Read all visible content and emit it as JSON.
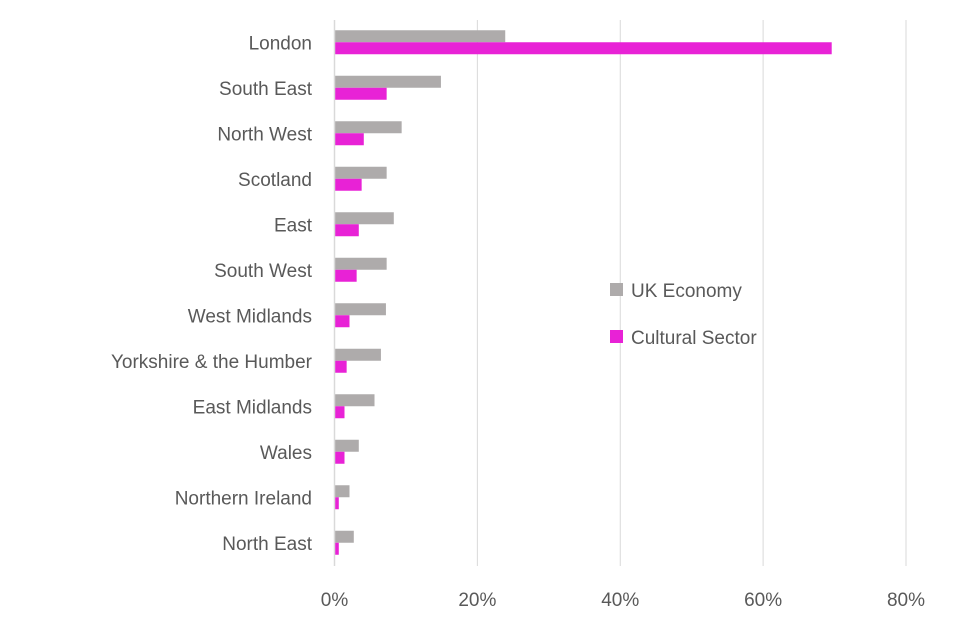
{
  "chart_data": {
    "type": "bar",
    "orientation": "horizontal",
    "categories": [
      "London",
      "South East",
      "North West",
      "Scotland",
      "East",
      "South West",
      "West Midlands",
      "Yorkshire & the Humber",
      "East Midlands",
      "Wales",
      "Northern Ireland",
      "North East"
    ],
    "series": [
      {
        "name": "UK Economy",
        "color": "#AEABAB",
        "values": [
          23.9,
          14.9,
          9.4,
          7.3,
          8.3,
          7.3,
          7.2,
          6.5,
          5.6,
          3.4,
          2.1,
          2.7
        ]
      },
      {
        "name": "Cultural Sector",
        "color": "#E822D6",
        "values": [
          69.6,
          7.3,
          4.1,
          3.8,
          3.4,
          3.1,
          2.1,
          1.7,
          1.4,
          1.4,
          0.6,
          0.6
        ]
      }
    ],
    "xlim": [
      0,
      80
    ],
    "xticks": [
      0,
      20,
      40,
      60,
      80
    ],
    "xtick_labels": [
      "0%",
      "20%",
      "40%",
      "60%",
      "80%"
    ],
    "title": "",
    "xlabel": "",
    "ylabel": "",
    "grid": "vertical",
    "legend_position": "right"
  }
}
